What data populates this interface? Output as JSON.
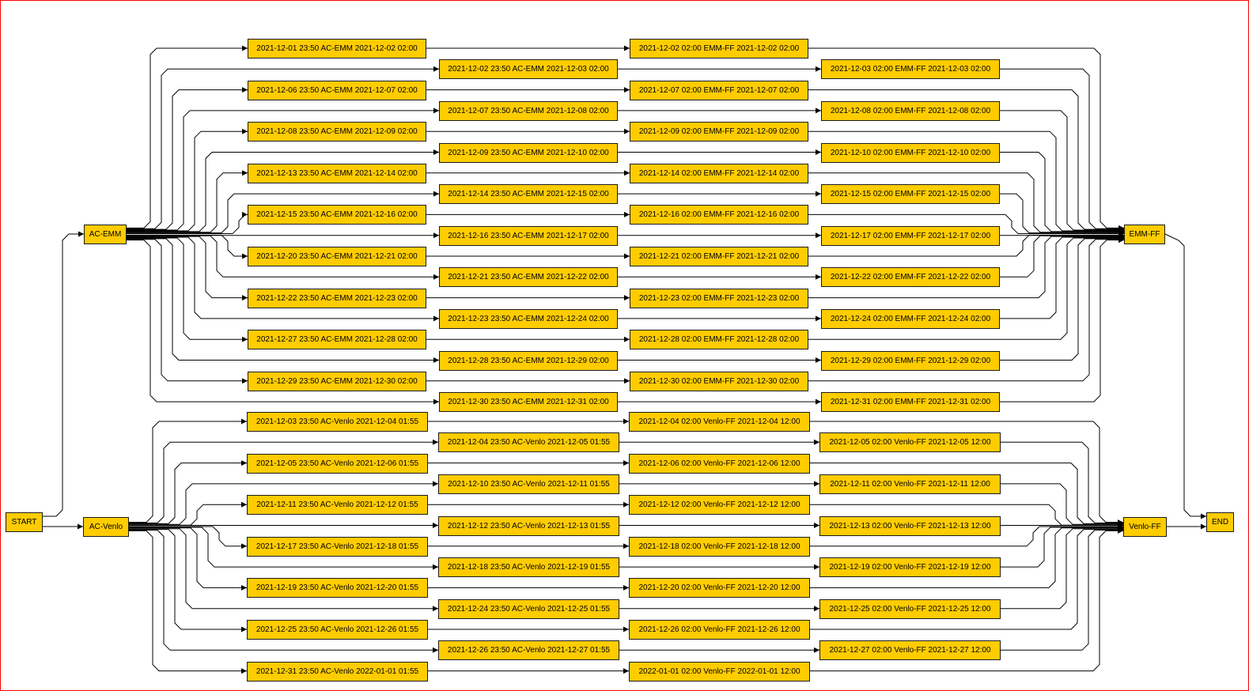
{
  "nodes": {
    "start": "START",
    "end": "END",
    "ac_emm": "AC-EMM",
    "emm_ff": "EMM-FF",
    "ac_venlo": "AC-Venlo",
    "venlo_ff": "Venlo-FF"
  },
  "emm_flows": [
    {
      "leg1": "2021-12-01 23:50 AC-EMM 2021-12-02 02:00",
      "leg2": "2021-12-02 02:00 EMM-FF 2021-12-02 02:00"
    },
    {
      "leg1": "2021-12-02 23:50 AC-EMM 2021-12-03 02:00",
      "leg2": "2021-12-03 02:00 EMM-FF 2021-12-03 02:00"
    },
    {
      "leg1": "2021-12-06 23:50 AC-EMM 2021-12-07 02:00",
      "leg2": "2021-12-07 02:00 EMM-FF 2021-12-07 02:00"
    },
    {
      "leg1": "2021-12-07 23:50 AC-EMM 2021-12-08 02:00",
      "leg2": "2021-12-08 02:00 EMM-FF 2021-12-08 02:00"
    },
    {
      "leg1": "2021-12-08 23:50 AC-EMM 2021-12-09 02:00",
      "leg2": "2021-12-09 02:00 EMM-FF 2021-12-09 02:00"
    },
    {
      "leg1": "2021-12-09 23:50 AC-EMM 2021-12-10 02:00",
      "leg2": "2021-12-10 02:00 EMM-FF 2021-12-10 02:00"
    },
    {
      "leg1": "2021-12-13 23:50 AC-EMM 2021-12-14 02:00",
      "leg2": "2021-12-14 02:00 EMM-FF 2021-12-14 02:00"
    },
    {
      "leg1": "2021-12-14 23:50 AC-EMM 2021-12-15 02:00",
      "leg2": "2021-12-15 02:00 EMM-FF 2021-12-15 02:00"
    },
    {
      "leg1": "2021-12-15 23:50 AC-EMM 2021-12-16 02:00",
      "leg2": "2021-12-16 02:00 EMM-FF 2021-12-16 02:00"
    },
    {
      "leg1": "2021-12-16 23:50 AC-EMM 2021-12-17 02:00",
      "leg2": "2021-12-17 02:00 EMM-FF 2021-12-17 02:00"
    },
    {
      "leg1": "2021-12-20 23:50 AC-EMM 2021-12-21 02:00",
      "leg2": "2021-12-21 02:00 EMM-FF 2021-12-21 02:00"
    },
    {
      "leg1": "2021-12-21 23:50 AC-EMM 2021-12-22 02:00",
      "leg2": "2021-12-22 02:00 EMM-FF 2021-12-22 02:00"
    },
    {
      "leg1": "2021-12-22 23:50 AC-EMM 2021-12-23 02:00",
      "leg2": "2021-12-23 02:00 EMM-FF 2021-12-23 02:00"
    },
    {
      "leg1": "2021-12-23 23:50 AC-EMM 2021-12-24 02:00",
      "leg2": "2021-12-24 02:00 EMM-FF 2021-12-24 02:00"
    },
    {
      "leg1": "2021-12-27 23:50 AC-EMM 2021-12-28 02:00",
      "leg2": "2021-12-28 02:00 EMM-FF 2021-12-28 02:00"
    },
    {
      "leg1": "2021-12-28 23:50 AC-EMM 2021-12-29 02:00",
      "leg2": "2021-12-29 02:00 EMM-FF 2021-12-29 02:00"
    },
    {
      "leg1": "2021-12-29 23:50 AC-EMM 2021-12-30 02:00",
      "leg2": "2021-12-30 02:00 EMM-FF 2021-12-30 02:00"
    },
    {
      "leg1": "2021-12-30 23:50 AC-EMM 2021-12-31 02:00",
      "leg2": "2021-12-31 02:00 EMM-FF 2021-12-31 02:00"
    }
  ],
  "venlo_flows": [
    {
      "leg1": "2021-12-03 23:50 AC-Venlo 2021-12-04 01:55",
      "leg2": "2021-12-04 02:00 Venlo-FF 2021-12-04 12:00"
    },
    {
      "leg1": "2021-12-04 23:50 AC-Venlo 2021-12-05 01:55",
      "leg2": "2021-12-05 02:00 Venlo-FF 2021-12-05 12:00"
    },
    {
      "leg1": "2021-12-05 23:50 AC-Venlo 2021-12-06 01:55",
      "leg2": "2021-12-06 02:00 Venlo-FF 2021-12-06 12:00"
    },
    {
      "leg1": "2021-12-10 23:50 AC-Venlo 2021-12-11 01:55",
      "leg2": "2021-12-11 02:00 Venlo-FF 2021-12-11 12:00"
    },
    {
      "leg1": "2021-12-11 23:50 AC-Venlo 2021-12-12 01:55",
      "leg2": "2021-12-12 02:00 Venlo-FF 2021-12-12 12:00"
    },
    {
      "leg1": "2021-12-12 23:50 AC-Venlo 2021-12-13 01:55",
      "leg2": "2021-12-13 02:00 Venlo-FF 2021-12-13 12:00"
    },
    {
      "leg1": "2021-12-17 23:50 AC-Venlo 2021-12-18 01:55",
      "leg2": "2021-12-18 02:00 Venlo-FF 2021-12-18 12:00"
    },
    {
      "leg1": "2021-12-18 23:50 AC-Venlo 2021-12-19 01:55",
      "leg2": "2021-12-19 02:00 Venlo-FF 2021-12-19 12:00"
    },
    {
      "leg1": "2021-12-19 23:50 AC-Venlo 2021-12-20 01:55",
      "leg2": "2021-12-20 02:00 Venlo-FF 2021-12-20 12:00"
    },
    {
      "leg1": "2021-12-24 23:50 AC-Venlo 2021-12-25 01:55",
      "leg2": "2021-12-25 02:00 Venlo-FF 2021-12-25 12:00"
    },
    {
      "leg1": "2021-12-25 23:50 AC-Venlo 2021-12-26 01:55",
      "leg2": "2021-12-26 02:00 Venlo-FF 2021-12-26 12:00"
    },
    {
      "leg1": "2021-12-26 23:50 AC-Venlo 2021-12-27 01:55",
      "leg2": "2021-12-27 02:00 Venlo-FF 2021-12-27 12:00"
    },
    {
      "leg1": "2021-12-31 23:50 AC-Venlo 2022-01-01 01:55",
      "leg2": "2022-01-01 02:00 Venlo-FF 2022-01-01 12:00"
    }
  ],
  "colors": {
    "node_fill": "#ffcc00",
    "node_border": "#1a1a1a",
    "edge": "#000000",
    "frame": "#ff0000"
  }
}
